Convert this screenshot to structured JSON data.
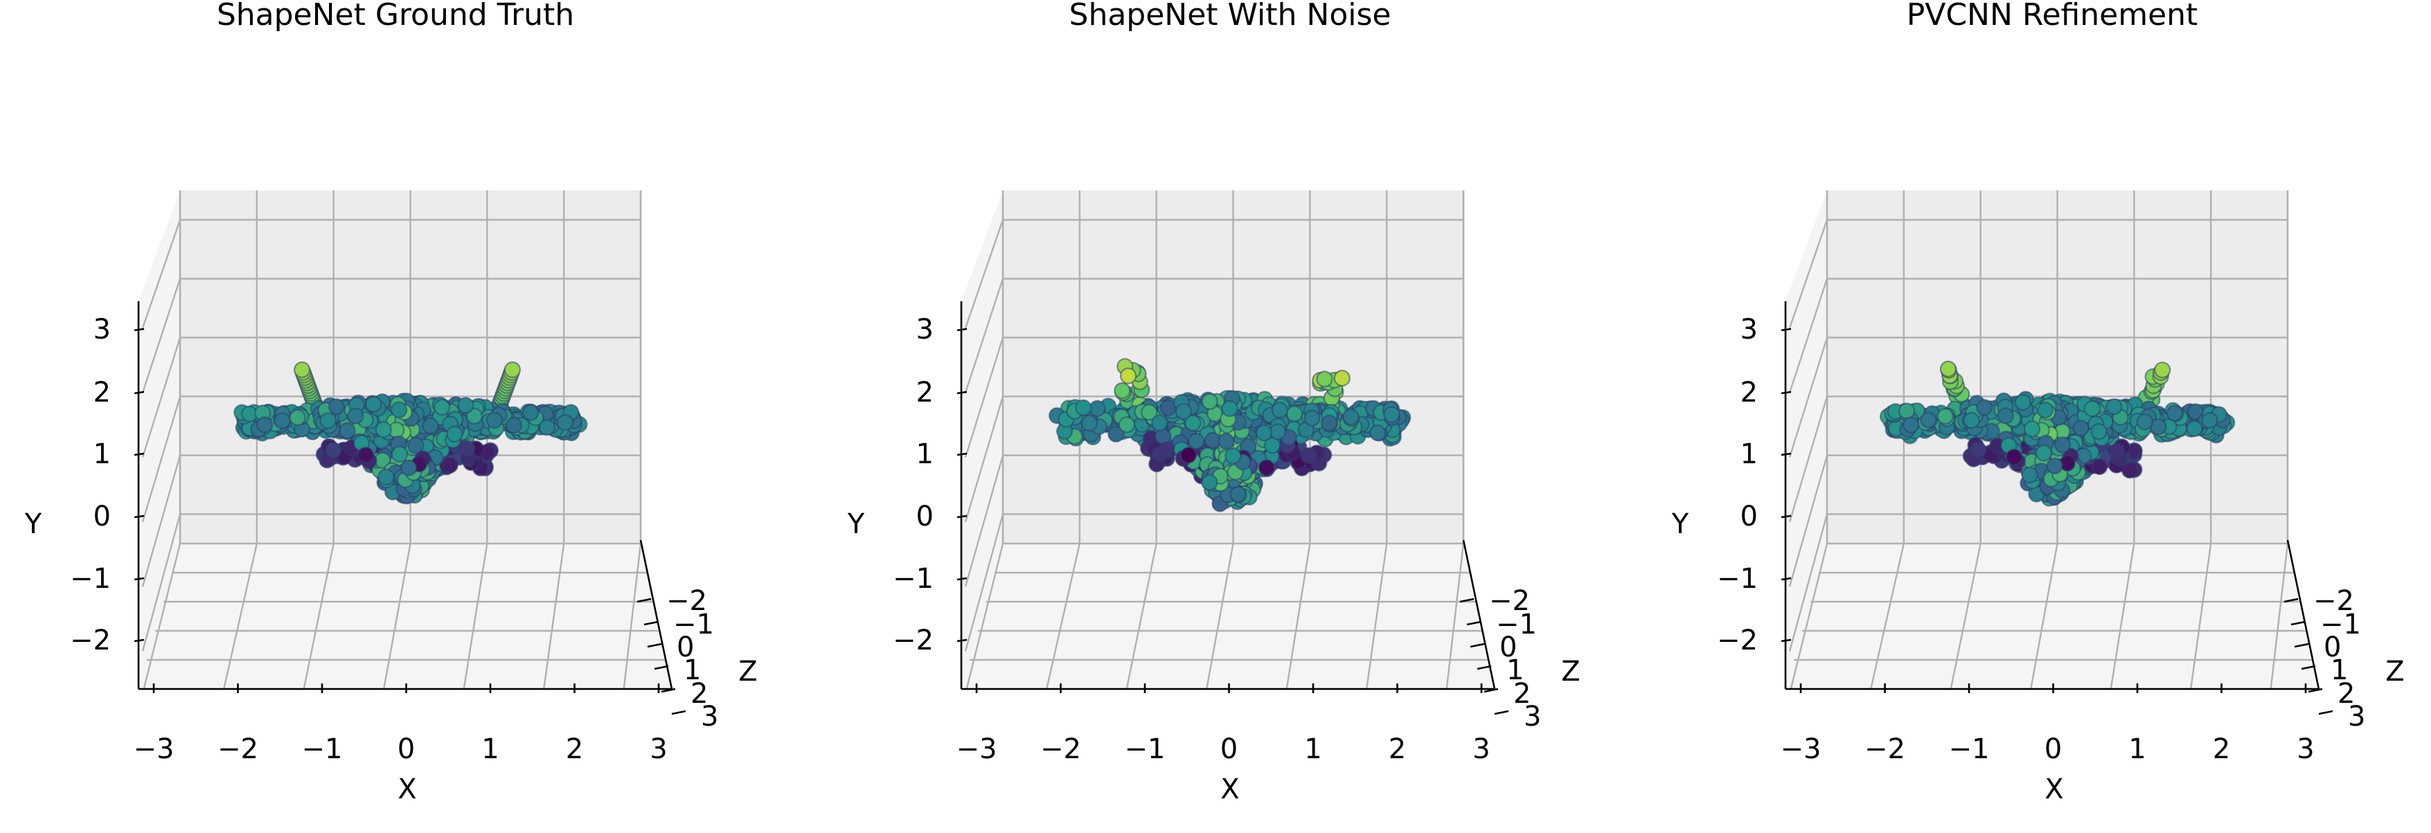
{
  "chart_data": [
    {
      "type": "scatter",
      "title": "ShapeNet Ground Truth",
      "xlabel": "X",
      "ylabel": "Y",
      "zlabel": "Z",
      "xticks": [
        "−3",
        "−2",
        "−1",
        "0",
        "1",
        "2",
        "3"
      ],
      "yticks": [
        "−2",
        "−1",
        "0",
        "1",
        "2",
        "3"
      ],
      "zticks": [
        "−2",
        "−1",
        "0",
        "1",
        "2",
        "3"
      ],
      "xlim": [
        -3,
        3
      ],
      "ylim": [
        -2.5,
        3.5
      ],
      "zlim": [
        -2.5,
        3.5
      ],
      "grid": true,
      "colormap": "viridis",
      "shape": "airplane",
      "noise": 0.0
    },
    {
      "type": "scatter",
      "title": "ShapeNet With Noise",
      "xlabel": "X",
      "ylabel": "Y",
      "zlabel": "Z",
      "xticks": [
        "−3",
        "−2",
        "−1",
        "0",
        "1",
        "2",
        "3"
      ],
      "yticks": [
        "−2",
        "−1",
        "0",
        "1",
        "2",
        "3"
      ],
      "zticks": [
        "−2",
        "−1",
        "0",
        "1",
        "2",
        "3"
      ],
      "xlim": [
        -3,
        3
      ],
      "ylim": [
        -2.5,
        3.5
      ],
      "zlim": [
        -2.5,
        3.5
      ],
      "grid": true,
      "colormap": "viridis",
      "shape": "airplane",
      "noise": 0.09
    },
    {
      "type": "scatter",
      "title": "PVCNN Refinement",
      "xlabel": "X",
      "ylabel": "Y",
      "zlabel": "Z",
      "xticks": [
        "−3",
        "−2",
        "−1",
        "0",
        "1",
        "2",
        "3"
      ],
      "yticks": [
        "−2",
        "−1",
        "0",
        "1",
        "2",
        "3"
      ],
      "zticks": [
        "−2",
        "−1",
        "0",
        "1",
        "2",
        "3"
      ],
      "xlim": [
        -3,
        3
      ],
      "ylim": [
        -2.5,
        3.5
      ],
      "zlim": [
        -2.5,
        3.5
      ],
      "grid": true,
      "colormap": "viridis",
      "shape": "airplane",
      "noise": 0.03
    }
  ],
  "colors": {
    "viridis": [
      "#440154",
      "#3b528b",
      "#21918c",
      "#5ec962",
      "#fde725"
    ],
    "point_edge": "#2a3a5a"
  }
}
